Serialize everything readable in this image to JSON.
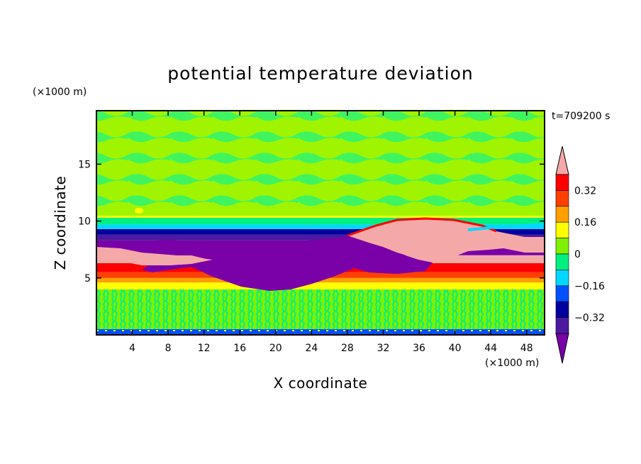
{
  "chart_data": {
    "type": "heatmap",
    "title": "potential temperature deviation",
    "xlabel": "X coordinate",
    "ylabel": "Z coordinate",
    "x_unit": "(×1000 m)",
    "y_unit": "(×1000 m)",
    "time_label": "t=709200 s",
    "xlim": [
      0,
      50
    ],
    "ylim": [
      0,
      19.7
    ],
    "x_ticks": [
      "4",
      "8",
      "12",
      "16",
      "20",
      "24",
      "28",
      "32",
      "36",
      "40",
      "44",
      "48"
    ],
    "x_tick_values": [
      4,
      8,
      12,
      16,
      20,
      24,
      28,
      32,
      36,
      40,
      44,
      48
    ],
    "y_ticks": [
      "5",
      "10",
      "15"
    ],
    "y_tick_values": [
      5,
      10,
      15
    ],
    "colorbar": {
      "levels": [
        -0.48,
        -0.4,
        -0.32,
        -0.24,
        -0.16,
        -0.08,
        0,
        0.08,
        0.16,
        0.24,
        0.32,
        0.4
      ],
      "labels": [
        "0.32",
        "0.16",
        "0",
        "−0.16",
        "−0.32"
      ],
      "label_values": [
        0.32,
        0.16,
        0,
        -0.16,
        -0.32
      ],
      "colors": [
        "#7a00a8",
        "#4b1aa0",
        "#0000a0",
        "#0050ff",
        "#00d8ff",
        "#00f080",
        "#80f000",
        "#ffff00",
        "#ffa000",
        "#ff4000",
        "#ff0000",
        "#f5a8a8"
      ]
    },
    "bands": [
      {
        "z": [
          0,
          0.5
        ],
        "value": -0.16
      },
      {
        "z": [
          0.5,
          4.0
        ],
        "value": 0
      },
      {
        "z": [
          4.0,
          4.6
        ],
        "value": 0.08
      },
      {
        "z": [
          4.6,
          5.0
        ],
        "value": 0.16
      },
      {
        "z": [
          5.0,
          5.5
        ],
        "value": 0.24
      },
      {
        "z": [
          5.5,
          6.3
        ],
        "value": 0.32
      },
      {
        "z": [
          6.3,
          7.0
        ],
        "value": 0.4
      },
      {
        "z": [
          7.0,
          8.3
        ],
        "value": -0.48
      },
      {
        "z": [
          8.3,
          8.8
        ],
        "value": -0.4
      },
      {
        "z": [
          8.8,
          9.3
        ],
        "value": -0.32
      },
      {
        "z": [
          9.3,
          9.7
        ],
        "value": -0.16
      },
      {
        "z": [
          9.7,
          10.3
        ],
        "value": -0.08
      },
      {
        "z": [
          10.3,
          19.7
        ],
        "value": 0.08
      }
    ],
    "regions": [
      {
        "name": "cold-pool",
        "value": -0.48
      },
      {
        "name": "warm-anomaly",
        "value": 0.4
      }
    ]
  }
}
